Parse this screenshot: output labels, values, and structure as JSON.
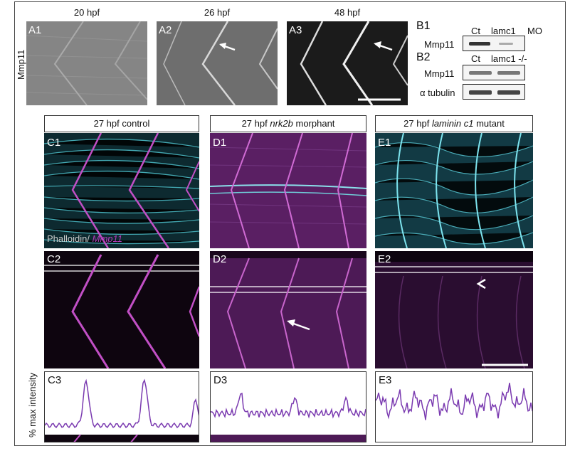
{
  "rowA": {
    "ylabel": "Mmp11",
    "panels": [
      {
        "label": "A1",
        "time": "20 hpf"
      },
      {
        "label": "A2",
        "time": "26 hpf"
      },
      {
        "label": "A3",
        "time": "48 hpf"
      }
    ]
  },
  "blots": {
    "b1_label": "B1",
    "b1_lanes": "Ct",
    "b1_lanes2": "lamc1",
    "b1_suffix": "MO",
    "b1_protein": "Mmp11",
    "b2_label": "B2",
    "b2_lanes": "Ct",
    "b2_lanes2": "lamc1 -/-",
    "b2_protein": "Mmp11",
    "b2_loading": "α tubulin"
  },
  "columns": [
    {
      "header_pre": "27 hpf control",
      "header_italic": "",
      "header_post": ""
    },
    {
      "header_pre": "27 hpf ",
      "header_italic": "nrk2b",
      "header_post": " morphant"
    },
    {
      "header_pre": "27 hpf ",
      "header_italic": "laminin c1",
      "header_post": " mutant"
    }
  ],
  "row1_labels": [
    "C1",
    "D1",
    "E1"
  ],
  "row2_labels": [
    "C2",
    "D2",
    "E2"
  ],
  "row3_labels": [
    "C3",
    "D3",
    "E3"
  ],
  "stain": {
    "phalloidin": "Phalloidin/ ",
    "mmp": "Mmp11"
  },
  "yaxis_label": "% max intensity",
  "colors": {
    "cyan": "#5fd3dc",
    "magenta": "#b13ab8",
    "trace": "#7a3ab0"
  }
}
